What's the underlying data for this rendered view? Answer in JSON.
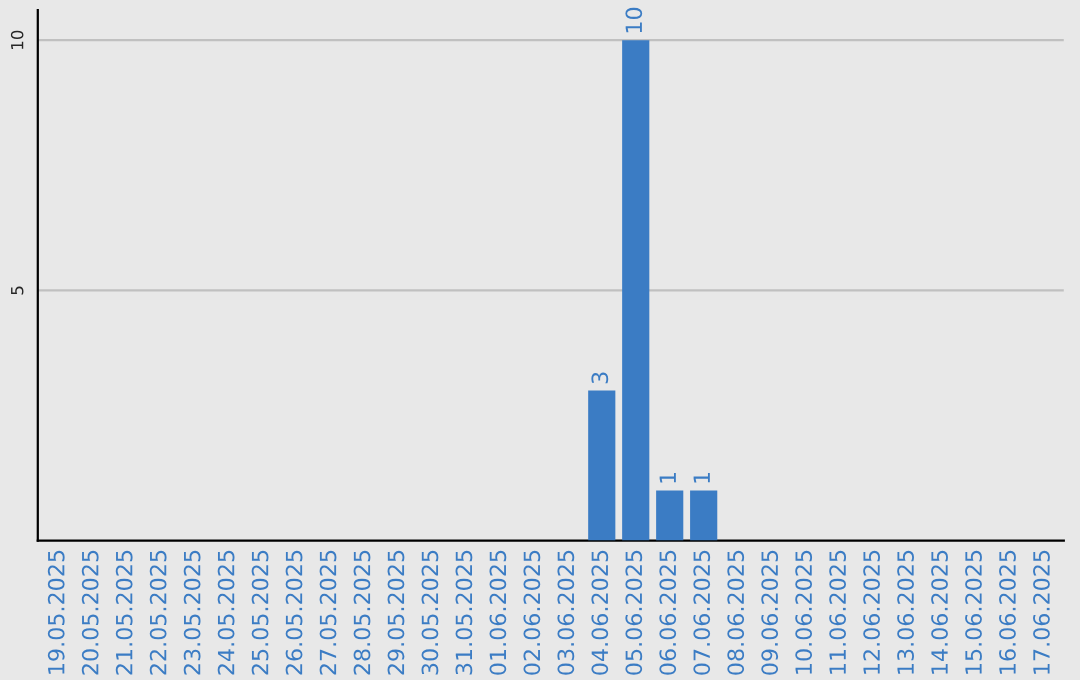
{
  "chart_data": {
    "type": "bar",
    "categories": [
      "19.05.2025",
      "20.05.2025",
      "21.05.2025",
      "22.05.2025",
      "23.05.2025",
      "24.05.2025",
      "25.05.2025",
      "26.05.2025",
      "27.05.2025",
      "28.05.2025",
      "29.05.2025",
      "30.05.2025",
      "31.05.2025",
      "01.06.2025",
      "02.06.2025",
      "03.06.2025",
      "04.06.2025",
      "05.06.2025",
      "06.06.2025",
      "07.06.2025",
      "08.06.2025",
      "09.06.2025",
      "10.06.2025",
      "11.06.2025",
      "12.06.2025",
      "13.06.2025",
      "14.06.2025",
      "15.06.2025",
      "16.06.2025",
      "17.06.2025"
    ],
    "values": [
      0,
      0,
      0,
      0,
      0,
      0,
      0,
      0,
      0,
      0,
      0,
      0,
      0,
      0,
      0,
      0,
      3,
      10,
      1,
      1,
      0,
      0,
      0,
      0,
      0,
      0,
      0,
      0,
      0,
      0
    ],
    "value_labels": [
      null,
      null,
      null,
      null,
      null,
      null,
      null,
      null,
      null,
      null,
      null,
      null,
      null,
      null,
      null,
      null,
      "3",
      "10",
      "1",
      "1",
      null,
      null,
      null,
      null,
      null,
      null,
      null,
      null,
      null,
      null
    ],
    "color": "#3b7cc4",
    "ylim": [
      0,
      10.6
    ],
    "yticks": [
      5,
      10
    ],
    "grid": "y"
  }
}
